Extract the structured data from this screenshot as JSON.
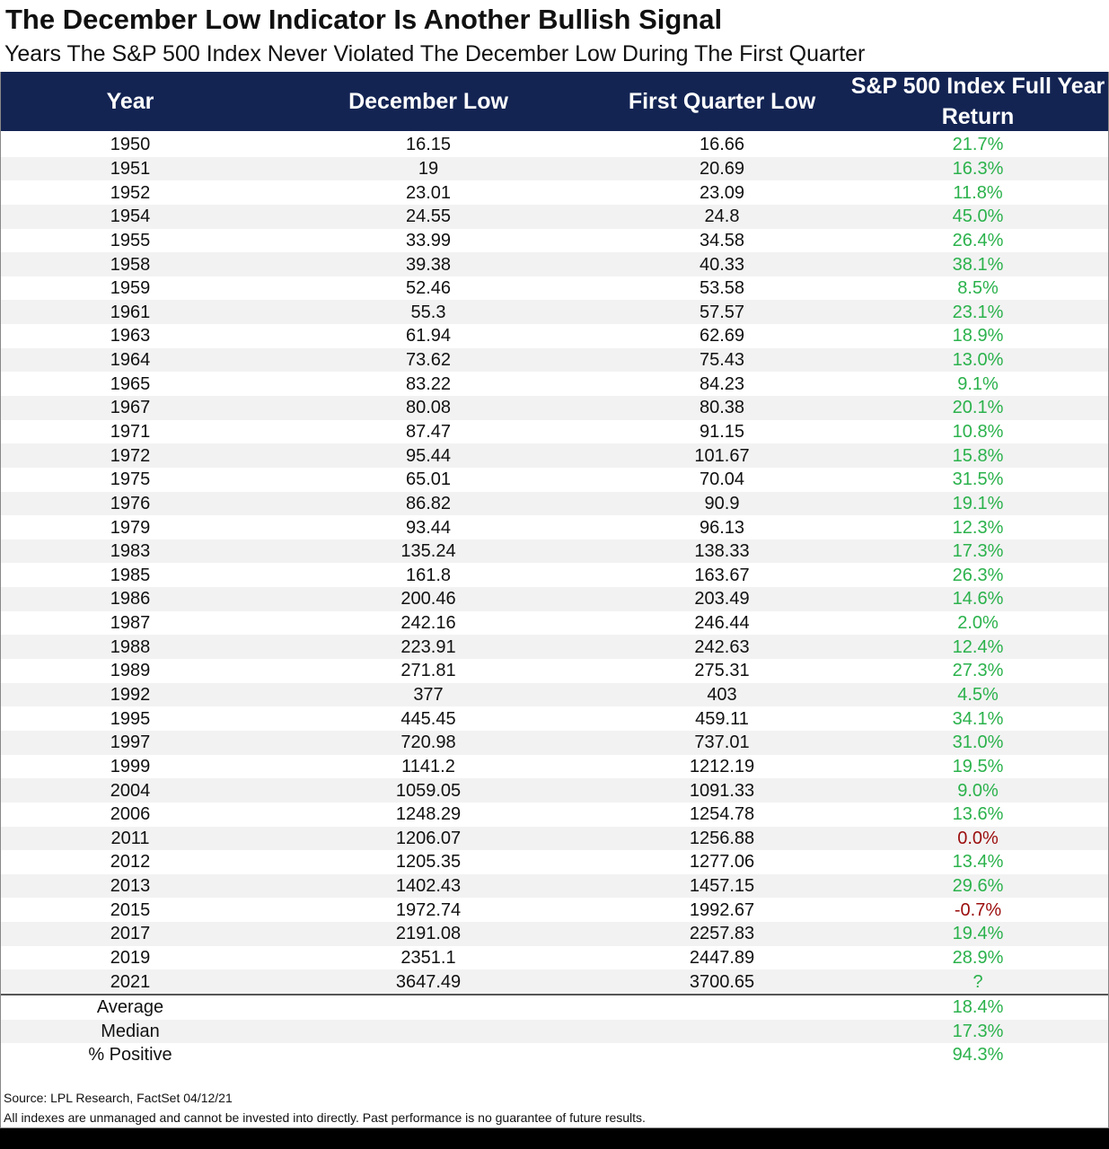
{
  "header": {
    "title": "The December Low Indicator Is Another Bullish Signal",
    "subtitle": "Years The S&P 500 Index Never Violated The December Low During The First Quarter"
  },
  "colors": {
    "positive": "#2bb24c",
    "negative": "#9b0d0d",
    "header": "#132453"
  },
  "table": {
    "columns": [
      "Year",
      "December Low",
      "First Quarter Low",
      "S&P 500 Index Full Year Return"
    ],
    "rows": [
      {
        "cells": [
          "1950",
          "16.15",
          "16.66",
          "21.7%"
        ],
        "tone": "positive"
      },
      {
        "cells": [
          "1951",
          "19",
          "20.69",
          "16.3%"
        ],
        "tone": "positive"
      },
      {
        "cells": [
          "1952",
          "23.01",
          "23.09",
          "11.8%"
        ],
        "tone": "positive"
      },
      {
        "cells": [
          "1954",
          "24.55",
          "24.8",
          "45.0%"
        ],
        "tone": "positive"
      },
      {
        "cells": [
          "1955",
          "33.99",
          "34.58",
          "26.4%"
        ],
        "tone": "positive"
      },
      {
        "cells": [
          "1958",
          "39.38",
          "40.33",
          "38.1%"
        ],
        "tone": "positive"
      },
      {
        "cells": [
          "1959",
          "52.46",
          "53.58",
          "8.5%"
        ],
        "tone": "positive"
      },
      {
        "cells": [
          "1961",
          "55.3",
          "57.57",
          "23.1%"
        ],
        "tone": "positive"
      },
      {
        "cells": [
          "1963",
          "61.94",
          "62.69",
          "18.9%"
        ],
        "tone": "positive"
      },
      {
        "cells": [
          "1964",
          "73.62",
          "75.43",
          "13.0%"
        ],
        "tone": "positive"
      },
      {
        "cells": [
          "1965",
          "83.22",
          "84.23",
          "9.1%"
        ],
        "tone": "positive"
      },
      {
        "cells": [
          "1967",
          "80.08",
          "80.38",
          "20.1%"
        ],
        "tone": "positive"
      },
      {
        "cells": [
          "1971",
          "87.47",
          "91.15",
          "10.8%"
        ],
        "tone": "positive"
      },
      {
        "cells": [
          "1972",
          "95.44",
          "101.67",
          "15.8%"
        ],
        "tone": "positive"
      },
      {
        "cells": [
          "1975",
          "65.01",
          "70.04",
          "31.5%"
        ],
        "tone": "positive"
      },
      {
        "cells": [
          "1976",
          "86.82",
          "90.9",
          "19.1%"
        ],
        "tone": "positive"
      },
      {
        "cells": [
          "1979",
          "93.44",
          "96.13",
          "12.3%"
        ],
        "tone": "positive"
      },
      {
        "cells": [
          "1983",
          "135.24",
          "138.33",
          "17.3%"
        ],
        "tone": "positive"
      },
      {
        "cells": [
          "1985",
          "161.8",
          "163.67",
          "26.3%"
        ],
        "tone": "positive"
      },
      {
        "cells": [
          "1986",
          "200.46",
          "203.49",
          "14.6%"
        ],
        "tone": "positive"
      },
      {
        "cells": [
          "1987",
          "242.16",
          "246.44",
          "2.0%"
        ],
        "tone": "positive"
      },
      {
        "cells": [
          "1988",
          "223.91",
          "242.63",
          "12.4%"
        ],
        "tone": "positive"
      },
      {
        "cells": [
          "1989",
          "271.81",
          "275.31",
          "27.3%"
        ],
        "tone": "positive"
      },
      {
        "cells": [
          "1992",
          "377",
          "403",
          "4.5%"
        ],
        "tone": "positive"
      },
      {
        "cells": [
          "1995",
          "445.45",
          "459.11",
          "34.1%"
        ],
        "tone": "positive"
      },
      {
        "cells": [
          "1997",
          "720.98",
          "737.01",
          "31.0%"
        ],
        "tone": "positive"
      },
      {
        "cells": [
          "1999",
          "1141.2",
          "1212.19",
          "19.5%"
        ],
        "tone": "positive"
      },
      {
        "cells": [
          "2004",
          "1059.05",
          "1091.33",
          "9.0%"
        ],
        "tone": "positive"
      },
      {
        "cells": [
          "2006",
          "1248.29",
          "1254.78",
          "13.6%"
        ],
        "tone": "positive"
      },
      {
        "cells": [
          "2011",
          "1206.07",
          "1256.88",
          "0.0%"
        ],
        "tone": "negative"
      },
      {
        "cells": [
          "2012",
          "1205.35",
          "1277.06",
          "13.4%"
        ],
        "tone": "positive"
      },
      {
        "cells": [
          "2013",
          "1402.43",
          "1457.15",
          "29.6%"
        ],
        "tone": "positive"
      },
      {
        "cells": [
          "2015",
          "1972.74",
          "1992.67",
          "-0.7%"
        ],
        "tone": "negative"
      },
      {
        "cells": [
          "2017",
          "2191.08",
          "2257.83",
          "19.4%"
        ],
        "tone": "positive"
      },
      {
        "cells": [
          "2019",
          "2351.1",
          "2447.89",
          "28.9%"
        ],
        "tone": "positive"
      },
      {
        "cells": [
          "2021",
          "3647.49",
          "3700.65",
          "?"
        ],
        "tone": "positive"
      }
    ],
    "summary": [
      {
        "label": "Average",
        "value": "18.4%"
      },
      {
        "label": "Median",
        "value": "17.3%"
      },
      {
        "label": "% Positive",
        "value": "94.3%"
      }
    ]
  },
  "footer": {
    "source": "Source: LPL Research, FactSet 04/12/21",
    "disclaimer": "All indexes are unmanaged and cannot be invested into directly. Past performance is no guarantee of future results."
  }
}
